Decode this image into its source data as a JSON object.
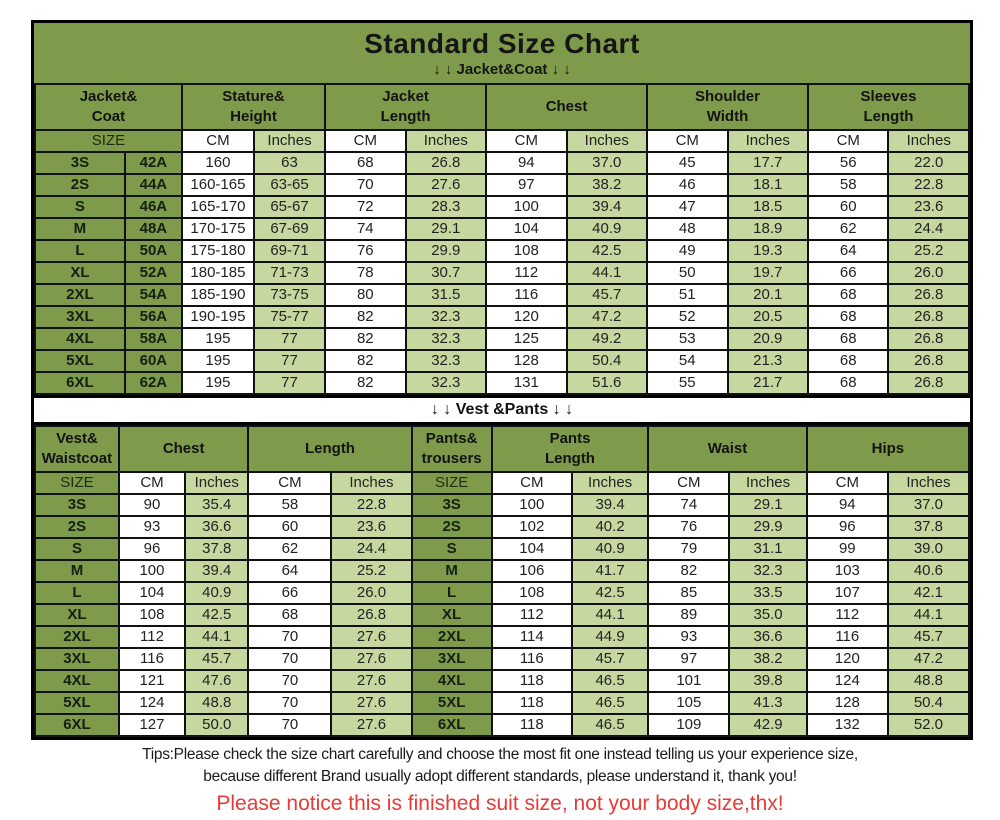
{
  "title": "Standard Size Chart",
  "section1_label": "↓ ↓  Jacket&Coat ↓ ↓",
  "section2_label": "↓ ↓  Vest &Pants ↓ ↓",
  "colors": {
    "header_green": "#7d9b4a",
    "light_green": "#c6d89f",
    "notice_red": "#e83a36"
  },
  "jacket_table": {
    "groups": [
      {
        "label": "Jacket&\nCoat",
        "span": 2
      },
      {
        "label": "Stature&\nHeight",
        "span": 2
      },
      {
        "label": "Jacket\nLength",
        "span": 2
      },
      {
        "label": "Chest",
        "span": 2
      },
      {
        "label": "Shoulder\nWidth",
        "span": 2
      },
      {
        "label": "Sleeves\nLength",
        "span": 2
      }
    ],
    "subheaders": [
      {
        "label": "SIZE",
        "span": 2,
        "type": "sizehdr"
      },
      {
        "label": "CM",
        "type": "cm"
      },
      {
        "label": "Inches",
        "type": "in"
      },
      {
        "label": "CM",
        "type": "cm"
      },
      {
        "label": "Inches",
        "type": "in"
      },
      {
        "label": "CM",
        "type": "cm"
      },
      {
        "label": "Inches",
        "type": "in"
      },
      {
        "label": "CM",
        "type": "cm"
      },
      {
        "label": "Inches",
        "type": "in"
      },
      {
        "label": "CM",
        "type": "cm"
      },
      {
        "label": "Inches",
        "type": "in"
      }
    ],
    "col_types": [
      "size",
      "size",
      "cm",
      "in",
      "cm",
      "in",
      "cm",
      "in",
      "cm",
      "in",
      "cm",
      "in"
    ],
    "rows": [
      [
        "3S",
        "42A",
        "160",
        "63",
        "68",
        "26.8",
        "94",
        "37.0",
        "45",
        "17.7",
        "56",
        "22.0"
      ],
      [
        "2S",
        "44A",
        "160-165",
        "63-65",
        "70",
        "27.6",
        "97",
        "38.2",
        "46",
        "18.1",
        "58",
        "22.8"
      ],
      [
        "S",
        "46A",
        "165-170",
        "65-67",
        "72",
        "28.3",
        "100",
        "39.4",
        "47",
        "18.5",
        "60",
        "23.6"
      ],
      [
        "M",
        "48A",
        "170-175",
        "67-69",
        "74",
        "29.1",
        "104",
        "40.9",
        "48",
        "18.9",
        "62",
        "24.4"
      ],
      [
        "L",
        "50A",
        "175-180",
        "69-71",
        "76",
        "29.9",
        "108",
        "42.5",
        "49",
        "19.3",
        "64",
        "25.2"
      ],
      [
        "XL",
        "52A",
        "180-185",
        "71-73",
        "78",
        "30.7",
        "112",
        "44.1",
        "50",
        "19.7",
        "66",
        "26.0"
      ],
      [
        "2XL",
        "54A",
        "185-190",
        "73-75",
        "80",
        "31.5",
        "116",
        "45.7",
        "51",
        "20.1",
        "68",
        "26.8"
      ],
      [
        "3XL",
        "56A",
        "190-195",
        "75-77",
        "82",
        "32.3",
        "120",
        "47.2",
        "52",
        "20.5",
        "68",
        "26.8"
      ],
      [
        "4XL",
        "58A",
        "195",
        "77",
        "82",
        "32.3",
        "125",
        "49.2",
        "53",
        "20.9",
        "68",
        "26.8"
      ],
      [
        "5XL",
        "60A",
        "195",
        "77",
        "82",
        "32.3",
        "128",
        "50.4",
        "54",
        "21.3",
        "68",
        "26.8"
      ],
      [
        "6XL",
        "62A",
        "195",
        "77",
        "82",
        "32.3",
        "131",
        "51.6",
        "55",
        "21.7",
        "68",
        "26.8"
      ]
    ]
  },
  "vest_pants_table": {
    "groups": [
      {
        "label": "Vest&\nWaistcoat",
        "span": 1
      },
      {
        "label": "Chest",
        "span": 2
      },
      {
        "label": "Length",
        "span": 2
      },
      {
        "label": "Pants&\ntrousers",
        "span": 1
      },
      {
        "label": "Pants\nLength",
        "span": 2
      },
      {
        "label": "Waist",
        "span": 2
      },
      {
        "label": "Hips",
        "span": 2
      }
    ],
    "subheaders": [
      {
        "label": "SIZE",
        "type": "sizehdr"
      },
      {
        "label": "CM",
        "type": "cm"
      },
      {
        "label": "Inches",
        "type": "in"
      },
      {
        "label": "CM",
        "type": "cm"
      },
      {
        "label": "Inches",
        "type": "in"
      },
      {
        "label": "SIZE",
        "type": "sizehdr"
      },
      {
        "label": "CM",
        "type": "cm"
      },
      {
        "label": "Inches",
        "type": "in"
      },
      {
        "label": "CM",
        "type": "cm"
      },
      {
        "label": "Inches",
        "type": "in"
      },
      {
        "label": "CM",
        "type": "cm"
      },
      {
        "label": "Inches",
        "type": "in"
      }
    ],
    "col_types": [
      "size",
      "cm",
      "in",
      "cm",
      "in",
      "size",
      "cm",
      "in",
      "cm",
      "in",
      "cm",
      "in"
    ],
    "rows": [
      [
        "3S",
        "90",
        "35.4",
        "58",
        "22.8",
        "3S",
        "100",
        "39.4",
        "74",
        "29.1",
        "94",
        "37.0"
      ],
      [
        "2S",
        "93",
        "36.6",
        "60",
        "23.6",
        "2S",
        "102",
        "40.2",
        "76",
        "29.9",
        "96",
        "37.8"
      ],
      [
        "S",
        "96",
        "37.8",
        "62",
        "24.4",
        "S",
        "104",
        "40.9",
        "79",
        "31.1",
        "99",
        "39.0"
      ],
      [
        "M",
        "100",
        "39.4",
        "64",
        "25.2",
        "M",
        "106",
        "41.7",
        "82",
        "32.3",
        "103",
        "40.6"
      ],
      [
        "L",
        "104",
        "40.9",
        "66",
        "26.0",
        "L",
        "108",
        "42.5",
        "85",
        "33.5",
        "107",
        "42.1"
      ],
      [
        "XL",
        "108",
        "42.5",
        "68",
        "26.8",
        "XL",
        "112",
        "44.1",
        "89",
        "35.0",
        "112",
        "44.1"
      ],
      [
        "2XL",
        "112",
        "44.1",
        "70",
        "27.6",
        "2XL",
        "114",
        "44.9",
        "93",
        "36.6",
        "116",
        "45.7"
      ],
      [
        "3XL",
        "116",
        "45.7",
        "70",
        "27.6",
        "3XL",
        "116",
        "45.7",
        "97",
        "38.2",
        "120",
        "47.2"
      ],
      [
        "4XL",
        "121",
        "47.6",
        "70",
        "27.6",
        "4XL",
        "118",
        "46.5",
        "101",
        "39.8",
        "124",
        "48.8"
      ],
      [
        "5XL",
        "124",
        "48.8",
        "70",
        "27.6",
        "5XL",
        "118",
        "46.5",
        "105",
        "41.3",
        "128",
        "50.4"
      ],
      [
        "6XL",
        "127",
        "50.0",
        "70",
        "27.6",
        "6XL",
        "118",
        "46.5",
        "109",
        "42.9",
        "132",
        "52.0"
      ]
    ]
  },
  "footer": {
    "tips_line1": "Tips:Please check the size chart carefully and choose the most fit one instead telling us your experience size,",
    "tips_line2": "because different Brand usually adopt different standards, please understand it, thank you!",
    "notice": "Please notice this is finished suit size, not your body size,thx!"
  }
}
